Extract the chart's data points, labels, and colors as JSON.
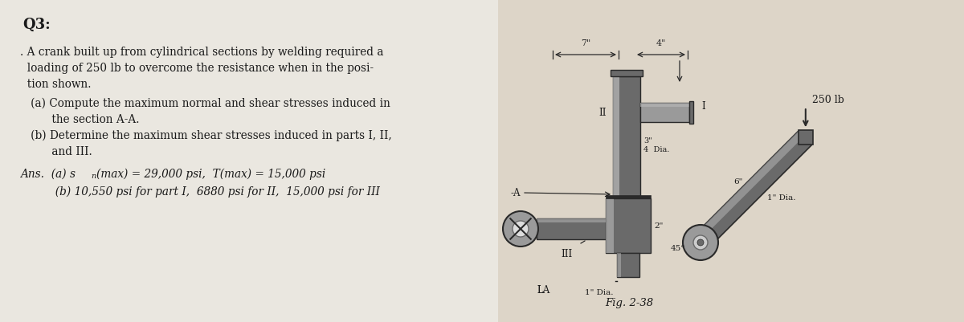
{
  "bg_left": "#e8e6e0",
  "bg_right": "#d8cfc4",
  "title": "Q3:",
  "body_lines": [
    ". A crank built up from cylindrical sections by welding required a",
    "  loading of 250 lb to overcome the resistance when in the posi-",
    "  tion shown.",
    "   (a) Compute the maximum normal and shear stresses induced in",
    "         the section A-A.",
    "   (b) Determine the maximum shear stresses induced in parts I, II,",
    "         and III."
  ],
  "body_y": [
    58,
    78,
    98,
    122,
    142,
    162,
    182
  ],
  "ans1": "Ans.  (a) s",
  "ans1b": "n",
  "ans1c": "(max) = 29,000 psi,  T(max) = 15,000 psi",
  "ans2": "          (b) 10,550 psi for part I,  6880 psi for II,  15,000 psi for III",
  "fig_label": "Fig. 2-38",
  "dim_7": "7\"",
  "dim_4": "4\"",
  "label_250lb": "250 lb",
  "label_I": "I",
  "label_II": "II",
  "label_III": "III",
  "label_A_dash": "-A",
  "label_LA": "LA",
  "label_dia_34": "3\"\nDia.",
  "label_2": "2\"",
  "label_45": "45",
  "label_6": "6\"",
  "label_1dia": "1\" Dia.",
  "label_1dia2": "1\" Dia."
}
